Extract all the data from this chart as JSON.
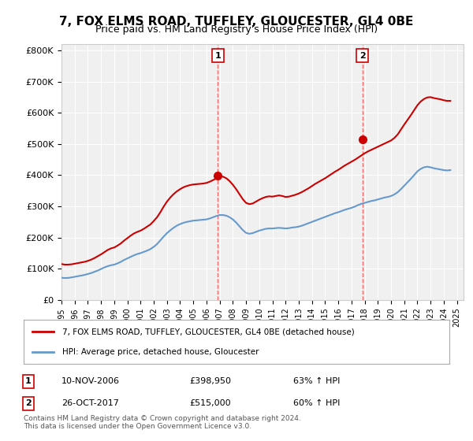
{
  "title": "7, FOX ELMS ROAD, TUFFLEY, GLOUCESTER, GL4 0BE",
  "subtitle": "Price paid vs. HM Land Registry's House Price Index (HPI)",
  "title_fontsize": 11,
  "subtitle_fontsize": 9,
  "ylabel_ticks": [
    "£0",
    "£100K",
    "£200K",
    "£300K",
    "£400K",
    "£500K",
    "£600K",
    "£700K",
    "£800K"
  ],
  "ytick_values": [
    0,
    100000,
    200000,
    300000,
    400000,
    500000,
    600000,
    700000,
    800000
  ],
  "ylim": [
    0,
    820000
  ],
  "xlim_start": 1995.0,
  "xlim_end": 2025.5,
  "xtick_years": [
    1995,
    1996,
    1997,
    1998,
    1999,
    2000,
    2001,
    2002,
    2003,
    2004,
    2005,
    2006,
    2007,
    2008,
    2009,
    2010,
    2011,
    2012,
    2013,
    2014,
    2015,
    2016,
    2017,
    2018,
    2019,
    2020,
    2021,
    2022,
    2023,
    2024,
    2025
  ],
  "sale1_x": 2006.86,
  "sale1_y": 398950,
  "sale1_label": "1",
  "sale2_x": 2017.82,
  "sale2_y": 515000,
  "sale2_label": "2",
  "sale1_vline_color": "#ff6666",
  "sale2_vline_color": "#ff6666",
  "hpi_color": "#6699cc",
  "price_color": "#cc0000",
  "dot_color": "#cc0000",
  "background_color": "#ffffff",
  "plot_bg_color": "#f0f0f0",
  "grid_color": "#ffffff",
  "legend_label_price": "7, FOX ELMS ROAD, TUFFLEY, GLOUCESTER, GL4 0BE (detached house)",
  "legend_label_hpi": "HPI: Average price, detached house, Gloucester",
  "table_row1": [
    "1",
    "10-NOV-2006",
    "£398,950",
    "63% ↑ HPI"
  ],
  "table_row2": [
    "2",
    "26-OCT-2017",
    "£515,000",
    "60% ↑ HPI"
  ],
  "footer": "Contains HM Land Registry data © Crown copyright and database right 2024.\nThis data is licensed under the Open Government Licence v3.0.",
  "hpi_data_x": [
    1995.0,
    1995.25,
    1995.5,
    1995.75,
    1996.0,
    1996.25,
    1996.5,
    1996.75,
    1997.0,
    1997.25,
    1997.5,
    1997.75,
    1998.0,
    1998.25,
    1998.5,
    1998.75,
    1999.0,
    1999.25,
    1999.5,
    1999.75,
    2000.0,
    2000.25,
    2000.5,
    2000.75,
    2001.0,
    2001.25,
    2001.5,
    2001.75,
    2002.0,
    2002.25,
    2002.5,
    2002.75,
    2003.0,
    2003.25,
    2003.5,
    2003.75,
    2004.0,
    2004.25,
    2004.5,
    2004.75,
    2005.0,
    2005.25,
    2005.5,
    2005.75,
    2006.0,
    2006.25,
    2006.5,
    2006.75,
    2007.0,
    2007.25,
    2007.5,
    2007.75,
    2008.0,
    2008.25,
    2008.5,
    2008.75,
    2009.0,
    2009.25,
    2009.5,
    2009.75,
    2010.0,
    2010.25,
    2010.5,
    2010.75,
    2011.0,
    2011.25,
    2011.5,
    2011.75,
    2012.0,
    2012.25,
    2012.5,
    2012.75,
    2013.0,
    2013.25,
    2013.5,
    2013.75,
    2014.0,
    2014.25,
    2014.5,
    2014.75,
    2015.0,
    2015.25,
    2015.5,
    2015.75,
    2016.0,
    2016.25,
    2016.5,
    2016.75,
    2017.0,
    2017.25,
    2017.5,
    2017.75,
    2018.0,
    2018.25,
    2018.5,
    2018.75,
    2019.0,
    2019.25,
    2019.5,
    2019.75,
    2020.0,
    2020.25,
    2020.5,
    2020.75,
    2021.0,
    2021.25,
    2021.5,
    2021.75,
    2022.0,
    2022.25,
    2022.5,
    2022.75,
    2023.0,
    2023.25,
    2023.5,
    2023.75,
    2024.0,
    2024.25,
    2024.5
  ],
  "hpi_data_y": [
    71000,
    70000,
    70500,
    72000,
    74000,
    76000,
    78000,
    80000,
    83000,
    86000,
    90000,
    94000,
    99000,
    104000,
    108000,
    111000,
    113000,
    117000,
    122000,
    128000,
    133000,
    138000,
    143000,
    147000,
    150000,
    154000,
    158000,
    163000,
    170000,
    179000,
    191000,
    203000,
    214000,
    223000,
    231000,
    238000,
    243000,
    247000,
    250000,
    252000,
    254000,
    255000,
    256000,
    257000,
    258000,
    261000,
    265000,
    269000,
    272000,
    272000,
    270000,
    265000,
    258000,
    248000,
    236000,
    224000,
    215000,
    212000,
    214000,
    218000,
    222000,
    225000,
    228000,
    229000,
    229000,
    230000,
    231000,
    230000,
    229000,
    230000,
    232000,
    233000,
    235000,
    238000,
    242000,
    246000,
    250000,
    254000,
    258000,
    262000,
    266000,
    270000,
    274000,
    278000,
    281000,
    285000,
    289000,
    292000,
    295000,
    299000,
    304000,
    308000,
    311000,
    314000,
    317000,
    319000,
    322000,
    325000,
    328000,
    330000,
    333000,
    338000,
    345000,
    355000,
    366000,
    377000,
    388000,
    400000,
    412000,
    420000,
    425000,
    427000,
    425000,
    422000,
    420000,
    418000,
    416000,
    415000,
    416000
  ],
  "price_data_x": [
    1995.0,
    1995.25,
    1995.5,
    1995.75,
    1996.0,
    1996.25,
    1996.5,
    1996.75,
    1997.0,
    1997.25,
    1997.5,
    1997.75,
    1998.0,
    1998.25,
    1998.5,
    1998.75,
    1999.0,
    1999.25,
    1999.5,
    1999.75,
    2000.0,
    2000.25,
    2000.5,
    2000.75,
    2001.0,
    2001.25,
    2001.5,
    2001.75,
    2002.0,
    2002.25,
    2002.5,
    2002.75,
    2003.0,
    2003.25,
    2003.5,
    2003.75,
    2004.0,
    2004.25,
    2004.5,
    2004.75,
    2005.0,
    2005.25,
    2005.5,
    2005.75,
    2006.0,
    2006.25,
    2006.5,
    2006.75,
    2007.0,
    2007.25,
    2007.5,
    2007.75,
    2008.0,
    2008.25,
    2008.5,
    2008.75,
    2009.0,
    2009.25,
    2009.5,
    2009.75,
    2010.0,
    2010.25,
    2010.5,
    2010.75,
    2011.0,
    2011.25,
    2011.5,
    2011.75,
    2012.0,
    2012.25,
    2012.5,
    2012.75,
    2013.0,
    2013.25,
    2013.5,
    2013.75,
    2014.0,
    2014.25,
    2014.5,
    2014.75,
    2015.0,
    2015.25,
    2015.5,
    2015.75,
    2016.0,
    2016.25,
    2016.5,
    2016.75,
    2017.0,
    2017.25,
    2017.5,
    2017.75,
    2018.0,
    2018.25,
    2018.5,
    2018.75,
    2019.0,
    2019.25,
    2019.5,
    2019.75,
    2020.0,
    2020.25,
    2020.5,
    2020.75,
    2021.0,
    2021.25,
    2021.5,
    2021.75,
    2022.0,
    2022.25,
    2022.5,
    2022.75,
    2023.0,
    2023.25,
    2023.5,
    2023.75,
    2024.0,
    2024.25,
    2024.5
  ],
  "price_data_y": [
    115000,
    113000,
    113000,
    114000,
    116000,
    118000,
    120000,
    122000,
    125000,
    129000,
    134000,
    140000,
    146000,
    153000,
    160000,
    165000,
    168000,
    174000,
    181000,
    190000,
    198000,
    206000,
    213000,
    218000,
    222000,
    228000,
    235000,
    242000,
    253000,
    265000,
    281000,
    299000,
    315000,
    328000,
    339000,
    348000,
    355000,
    361000,
    365000,
    368000,
    370000,
    371000,
    372000,
    373000,
    375000,
    379000,
    384000,
    390000,
    396000,
    395000,
    390000,
    381000,
    369000,
    355000,
    339000,
    323000,
    311000,
    307000,
    309000,
    315000,
    321000,
    326000,
    330000,
    332000,
    331000,
    333000,
    335000,
    333000,
    330000,
    331000,
    334000,
    337000,
    341000,
    346000,
    352000,
    358000,
    365000,
    372000,
    378000,
    384000,
    390000,
    397000,
    404000,
    411000,
    417000,
    424000,
    431000,
    437000,
    443000,
    449000,
    456000,
    463000,
    470000,
    476000,
    481000,
    486000,
    491000,
    496000,
    501000,
    506000,
    511000,
    519000,
    530000,
    546000,
    562000,
    577000,
    592000,
    608000,
    624000,
    636000,
    644000,
    649000,
    650000,
    647000,
    645000,
    643000,
    640000,
    638000,
    638000
  ]
}
